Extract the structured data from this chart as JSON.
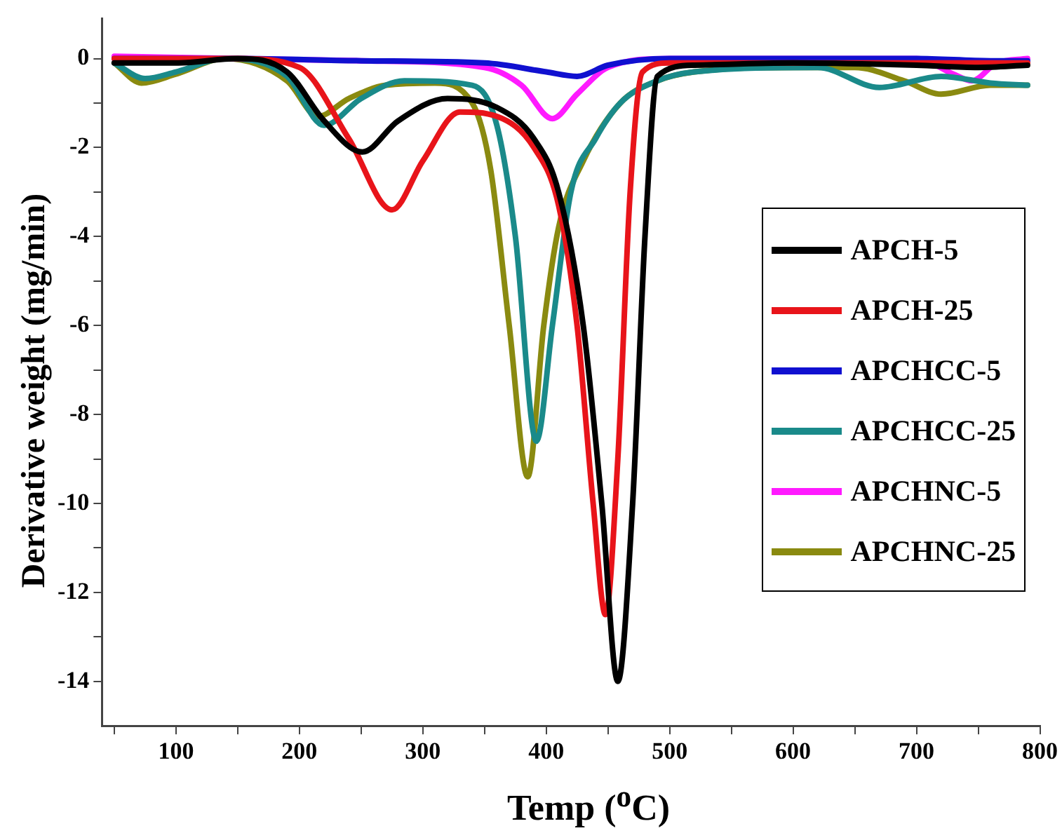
{
  "chart_data": {
    "type": "line",
    "xlabel": "Temp ($^{o}$C)",
    "ylabel": "Derivative weight (mg/min)",
    "xlim": [
      40,
      800
    ],
    "ylim": [
      -15,
      0.9
    ],
    "xticks": [
      {
        "value": 50,
        "label": null
      },
      100,
      {
        "value": 150,
        "label": null
      },
      200,
      {
        "value": 250,
        "label": null
      },
      300,
      {
        "value": 350,
        "label": null
      },
      400,
      {
        "value": 450,
        "label": null
      },
      500,
      {
        "value": 550,
        "label": null
      },
      600,
      {
        "value": 650,
        "label": null
      },
      700,
      {
        "value": 750,
        "label": null
      },
      800
    ],
    "yticks": [
      0,
      {
        "value": -1,
        "label": null
      },
      -2,
      {
        "value": -3,
        "label": null
      },
      -4,
      {
        "value": -5,
        "label": null
      },
      -6,
      {
        "value": -7,
        "label": null
      },
      -8,
      {
        "value": -9,
        "label": null
      },
      -10,
      {
        "value": -11,
        "label": null
      },
      -12,
      {
        "value": -13,
        "label": null
      },
      -14
    ],
    "legend": "right",
    "grid": false,
    "marker": "none",
    "line_style": "solid",
    "series": [
      {
        "name": "APCH-5",
        "color": "#000000",
        "x": [
          50,
          100,
          150,
          190,
          220,
          251,
          280,
          320,
          360,
          390,
          410,
          430,
          445,
          458,
          470,
          480,
          490,
          520,
          600,
          700,
          750,
          790
        ],
        "values": [
          -0.1,
          -0.1,
          0,
          -0.3,
          -1.4,
          -2.1,
          -1.4,
          -0.9,
          -1.1,
          -1.8,
          -3,
          -6,
          -10,
          -14,
          -10,
          -4,
          -0.4,
          -0.15,
          -0.1,
          -0.15,
          -0.2,
          -0.15
        ]
      },
      {
        "name": "APCH-25",
        "color": "#e8141a",
        "x": [
          50,
          100,
          150,
          200,
          240,
          275,
          300,
          330,
          360,
          390,
          410,
          425,
          438,
          448,
          458,
          468,
          478,
          500,
          600,
          700,
          790
        ],
        "values": [
          0,
          0,
          0,
          -0.2,
          -1.8,
          -3.4,
          -2.3,
          -1.2,
          -1.3,
          -2,
          -3.3,
          -6,
          -10,
          -12.5,
          -9,
          -3,
          -0.3,
          -0.1,
          -0.1,
          -0.1,
          -0.1
        ]
      },
      {
        "name": "APCHCC-5",
        "color": "#1010d0",
        "x": [
          50,
          150,
          250,
          350,
          400,
          425,
          450,
          500,
          600,
          700,
          760,
          790
        ],
        "values": [
          0,
          0,
          -0.05,
          -0.1,
          -0.3,
          -0.4,
          -0.15,
          0,
          0,
          0,
          -0.05,
          -0.05
        ]
      },
      {
        "name": "APCHCC-25",
        "color": "#1a8a8a",
        "x": [
          50,
          75,
          100,
          140,
          190,
          220,
          250,
          285,
          340,
          360,
          375,
          392,
          405,
          420,
          440,
          460,
          490,
          520,
          620,
          670,
          720,
          760,
          790
        ],
        "values": [
          -0.1,
          -0.45,
          -0.3,
          0,
          -0.4,
          -1.5,
          -0.9,
          -0.5,
          -0.6,
          -1.5,
          -4,
          -8.6,
          -6,
          -3,
          -1.8,
          -1,
          -0.5,
          -0.3,
          -0.2,
          -0.65,
          -0.4,
          -0.55,
          -0.6
        ]
      },
      {
        "name": "APCHNC-5",
        "color": "#ff1aff",
        "x": [
          50,
          150,
          250,
          350,
          380,
          405,
          425,
          450,
          500,
          600,
          700,
          730,
          745,
          765,
          790
        ],
        "values": [
          0.05,
          0,
          -0.05,
          -0.2,
          -0.6,
          -1.35,
          -0.8,
          -0.2,
          0,
          0,
          0,
          -0.35,
          -0.5,
          -0.1,
          0
        ]
      },
      {
        "name": "APCHNC-25",
        "color": "#8a8a10",
        "x": [
          50,
          72,
          100,
          140,
          190,
          215,
          240,
          270,
          310,
          340,
          355,
          370,
          385,
          398,
          410,
          430,
          460,
          490,
          520,
          600,
          650,
          690,
          720,
          760,
          790
        ],
        "values": [
          -0.1,
          -0.55,
          -0.35,
          0,
          -0.5,
          -1.3,
          -0.9,
          -0.6,
          -0.55,
          -1,
          -2.5,
          -6,
          -9.4,
          -6,
          -3.8,
          -2.3,
          -1,
          -0.5,
          -0.3,
          -0.2,
          -0.2,
          -0.5,
          -0.8,
          -0.6,
          -0.6
        ]
      }
    ]
  }
}
